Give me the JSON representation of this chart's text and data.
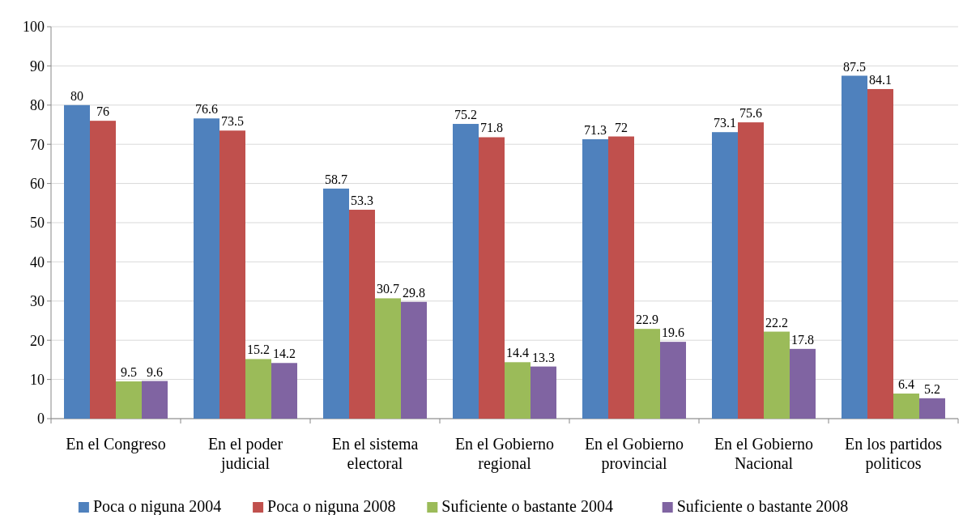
{
  "chart_data": {
    "type": "bar",
    "categories": [
      "En el Congreso",
      "En el poder judicial",
      "En el sistema electoral",
      "En el Gobierno regional",
      "En el Gobierno provincial",
      "En el Gobierno Nacional",
      "En los partidos politicos"
    ],
    "series": [
      {
        "name": "Poca o niguna 2004",
        "color": "#4f81bd",
        "values": [
          80,
          76.6,
          58.7,
          75.2,
          71.3,
          73.1,
          87.5
        ]
      },
      {
        "name": "Poca o niguna 2008",
        "color": "#c0504d",
        "values": [
          76,
          73.5,
          53.3,
          71.8,
          72,
          75.6,
          84.1
        ]
      },
      {
        "name": "Suficiente o bastante 2004",
        "color": "#9bbb59",
        "values": [
          9.5,
          15.2,
          30.7,
          14.4,
          22.9,
          22.2,
          6.4
        ]
      },
      {
        "name": "Suficiente o bastante 2008",
        "color": "#8064a2",
        "values": [
          9.6,
          14.2,
          29.8,
          13.3,
          19.6,
          17.8,
          5.2
        ]
      }
    ],
    "ylim": [
      0,
      100
    ],
    "yticks": [
      0,
      10,
      20,
      30,
      40,
      50,
      60,
      70,
      80,
      90,
      100
    ],
    "grid": "y",
    "legend": "bottom",
    "data_labels": true
  }
}
